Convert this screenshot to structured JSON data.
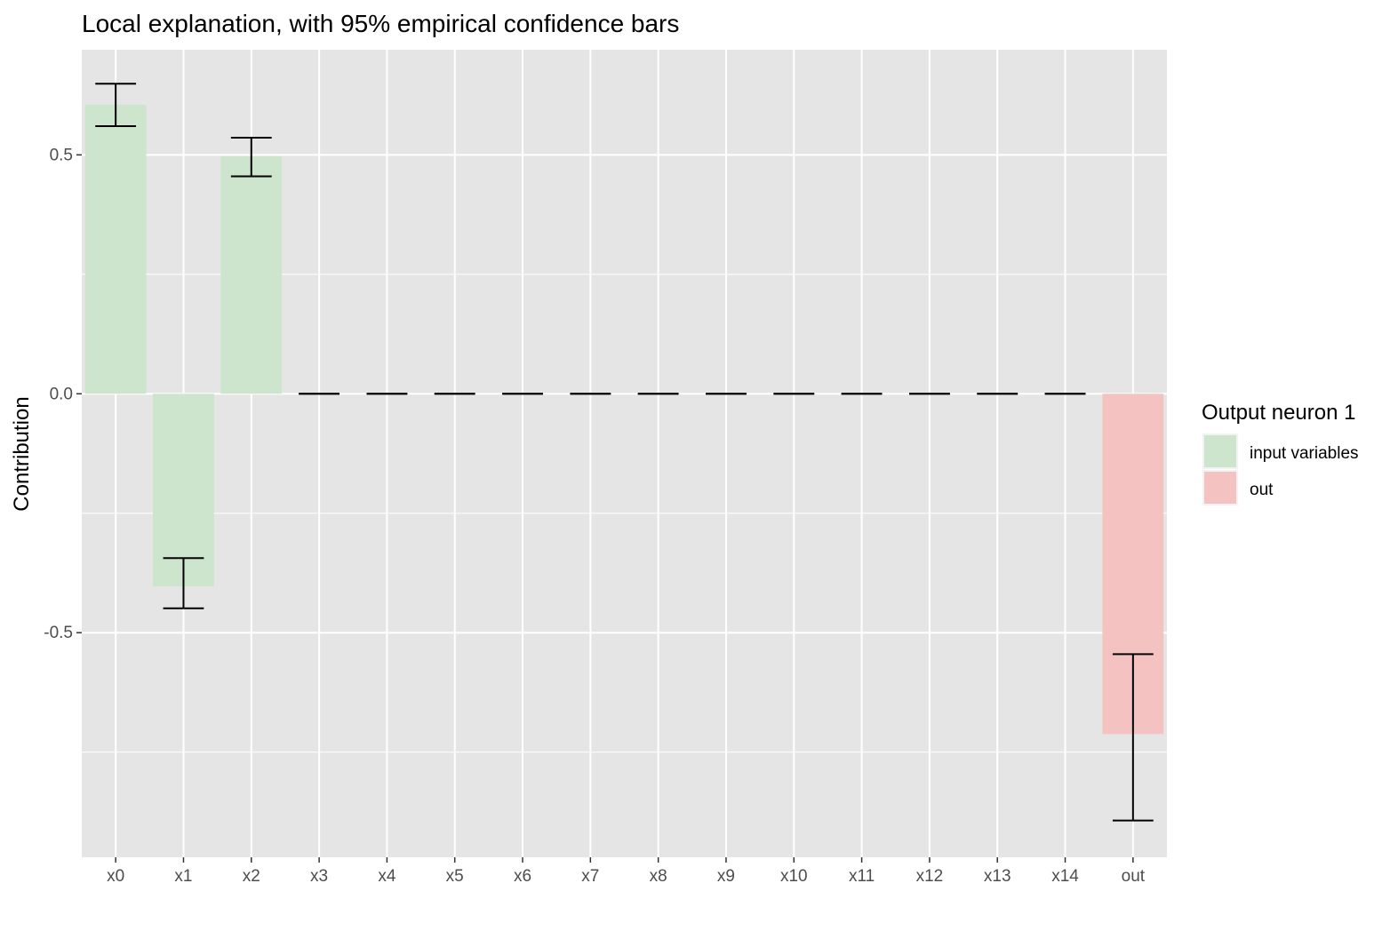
{
  "chart_data": {
    "type": "bar",
    "title": "Local explanation, with 95% empirical confidence bars",
    "xlabel": "",
    "ylabel": "Contribution",
    "categories": [
      "x0",
      "x1",
      "x2",
      "x3",
      "x4",
      "x5",
      "x6",
      "x7",
      "x8",
      "x9",
      "x10",
      "x11",
      "x12",
      "x13",
      "x14",
      "out"
    ],
    "values": [
      0.605,
      -0.403,
      0.497,
      0,
      0,
      0,
      0,
      0,
      0,
      0,
      0,
      0,
      0,
      0,
      0,
      -0.712
    ],
    "groups": [
      "input variables",
      "input variables",
      "input variables",
      "input variables",
      "input variables",
      "input variables",
      "input variables",
      "input variables",
      "input variables",
      "input variables",
      "input variables",
      "input variables",
      "input variables",
      "input variables",
      "input variables",
      "out"
    ],
    "error_low": [
      0.56,
      -0.449,
      0.455,
      0,
      0,
      0,
      0,
      0,
      0,
      0,
      0,
      0,
      0,
      0,
      0,
      -0.893
    ],
    "error_high": [
      0.649,
      -0.344,
      0.536,
      0,
      0,
      0,
      0,
      0,
      0,
      0,
      0,
      0,
      0,
      0,
      0,
      -0.545
    ],
    "ylim": [
      -0.97,
      0.72
    ],
    "yticks": [
      0.5,
      0.0,
      -0.5
    ],
    "ytick_labels": [
      "0.5",
      "0.0",
      "-0.5"
    ],
    "grid": true,
    "legend": {
      "title": "Output neuron 1",
      "position": "right",
      "items": [
        {
          "label": "input variables",
          "color": "#cce5cc"
        },
        {
          "label": "out",
          "color": "#f5c2c2"
        }
      ]
    },
    "colors": {
      "panel_bg": "#e5e5e5",
      "grid": "#ffffff",
      "errorbar": "#000000",
      "axis_text": "#4d4d4d"
    }
  }
}
